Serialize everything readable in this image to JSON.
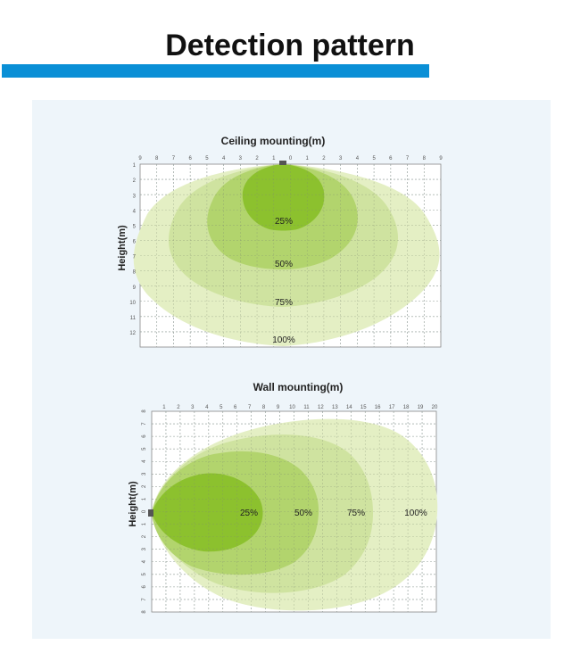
{
  "page": {
    "title": "Detection pattern"
  },
  "ceiling_chart": {
    "title": "Ceiling mounting(m)",
    "ylabel": "Height(m)",
    "x_ticks": [
      "9",
      "8",
      "7",
      "6",
      "5",
      "4",
      "3",
      "2",
      "1",
      "0",
      "1",
      "2",
      "3",
      "4",
      "5",
      "6",
      "7",
      "8",
      "9"
    ],
    "y_ticks": [
      "1",
      "2",
      "3",
      "4",
      "5",
      "6",
      "7",
      "8",
      "9",
      "10",
      "11",
      "12"
    ],
    "zone_labels": [
      "25%",
      "50%",
      "75%",
      "100%"
    ]
  },
  "wall_chart": {
    "title": "Wall mounting(m)",
    "ylabel": "Height(m)",
    "x_ticks": [
      "1",
      "2",
      "3",
      "4",
      "5",
      "6",
      "7",
      "8",
      "9",
      "10",
      "11",
      "12",
      "13",
      "14",
      "15",
      "16",
      "17",
      "18",
      "19",
      "20"
    ],
    "y_ticks": [
      "8",
      "7",
      "6",
      "5",
      "4",
      "3",
      "2",
      "1",
      "0",
      "1",
      "2",
      "3",
      "4",
      "5",
      "6",
      "7",
      "8"
    ],
    "zone_labels": [
      "25%",
      "50%",
      "75%",
      "100%"
    ]
  },
  "colors": {
    "title_bar": "#0a8fd6",
    "panel_bg": "#eef5fa",
    "zone_100": "#e4efc4",
    "zone_75": "#cfe3a0",
    "zone_50": "#b2d46d",
    "zone_25": "#8cc12e"
  }
}
